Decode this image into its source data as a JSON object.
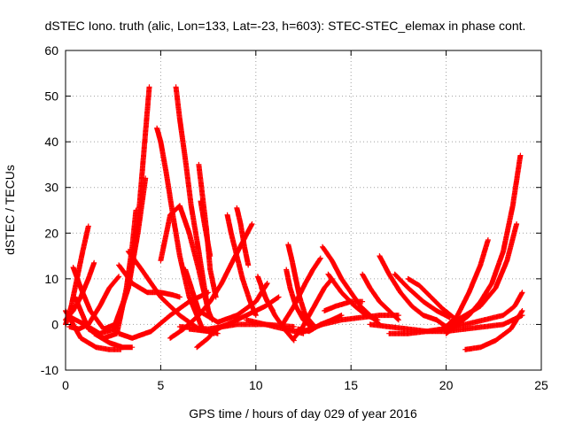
{
  "chart_data": {
    "type": "scatter",
    "title": "dSTEC Iono. truth (alic, Lon=133, Lat=-23, h=603): STEC-STEC_elemax in phase cont.",
    "xlabel": "GPS time / hours of day 029 of year 2016",
    "ylabel": "dSTEC  / TECUs",
    "xlim": [
      0,
      25
    ],
    "ylim": [
      -10,
      60
    ],
    "xticks": [
      0,
      5,
      10,
      15,
      20,
      25
    ],
    "yticks": [
      -10,
      0,
      10,
      20,
      30,
      40,
      50,
      60
    ],
    "grid": true,
    "marker": "plus",
    "color": "#ff0000",
    "series": [
      {
        "x": [
          0.0,
          0.3,
          0.6,
          0.9,
          1.2
        ],
        "y": [
          0.0,
          4,
          10,
          16,
          21.5
        ]
      },
      {
        "x": [
          0.0,
          0.4,
          0.8,
          1.2,
          1.5
        ],
        "y": [
          1.0,
          3,
          6,
          10,
          13.5
        ]
      },
      {
        "x": [
          0.3,
          1.0,
          1.8,
          2.6,
          3.3,
          3.8,
          4.1,
          4.4
        ],
        "y": [
          1.5,
          0,
          -2,
          -1,
          8,
          22,
          37,
          52
        ]
      },
      {
        "x": [
          0.4,
          0.8,
          1.3,
          2.0,
          2.6,
          3.3,
          3.8,
          4.2
        ],
        "y": [
          12.5,
          8,
          3,
          -1,
          0,
          8,
          20,
          32
        ]
      },
      {
        "x": [
          0.5,
          1.2,
          2.0,
          2.7,
          3.2,
          3.5,
          3.7
        ],
        "y": [
          6,
          -1,
          -3,
          -2,
          8,
          17,
          25
        ]
      },
      {
        "x": [
          0.0,
          0.8,
          1.6,
          2.3,
          2.9
        ],
        "y": [
          3,
          -3,
          -5,
          -5.5,
          -5.5
        ]
      },
      {
        "x": [
          0.2,
          0.7,
          1.2,
          1.8,
          2.3,
          2.8
        ],
        "y": [
          -0.5,
          -1,
          0,
          4,
          8,
          10.5
        ]
      },
      {
        "x": [
          1.5,
          2.3,
          3.0,
          3.5
        ],
        "y": [
          -2,
          -4,
          -5,
          -5
        ]
      },
      {
        "x": [
          2.8,
          3.5,
          4.3,
          5.0,
          5.6,
          6.0
        ],
        "y": [
          13,
          9,
          7,
          7,
          6.5,
          6
        ]
      },
      {
        "x": [
          2.8,
          3.5,
          4.5,
          5.5,
          6.5,
          7.5
        ],
        "y": [
          -2,
          -3,
          -1.5,
          2,
          5,
          7
        ]
      },
      {
        "x": [
          3.3,
          4.0,
          5.0,
          6.0,
          7.0,
          8.0
        ],
        "y": [
          16,
          12,
          6,
          2,
          -1,
          -2
        ]
      },
      {
        "x": [
          4.8,
          5.0,
          5.3,
          5.6,
          6.0,
          6.5,
          7.2,
          7.8
        ],
        "y": [
          43,
          40,
          33,
          25,
          15,
          6,
          -1,
          -2
        ]
      },
      {
        "x": [
          5.0,
          5.5,
          6.0,
          6.5,
          7.0,
          7.5
        ],
        "y": [
          14,
          24,
          26,
          20,
          12,
          3
        ]
      },
      {
        "x": [
          5.8,
          6.0,
          6.3,
          6.6,
          7.0,
          7.3,
          7.5,
          7.7
        ],
        "y": [
          52,
          45,
          36,
          26,
          16,
          8,
          3,
          1
        ]
      },
      {
        "x": [
          7.0,
          7.2,
          7.4,
          7.6,
          7.9
        ],
        "y": [
          35,
          28,
          21,
          12,
          6
        ]
      },
      {
        "x": [
          7.1,
          7.3,
          7.6
        ],
        "y": [
          27,
          22,
          15
        ]
      },
      {
        "x": [
          6.9,
          7.2,
          7.5,
          7.8,
          8.2,
          8.6
        ],
        "y": [
          -5,
          -4,
          -3,
          -1.5,
          -0.5,
          0
        ]
      },
      {
        "x": [
          5.5,
          6.2,
          7.0,
          7.6,
          8.2,
          8.8,
          9.3,
          9.8
        ],
        "y": [
          -3,
          -1,
          2,
          5,
          9,
          14,
          18,
          22
        ]
      },
      {
        "x": [
          6.5,
          7.5,
          8.5,
          9.5,
          10.5,
          11.2
        ],
        "y": [
          -1,
          -1.5,
          0,
          2,
          4,
          6
        ]
      },
      {
        "x": [
          6.3,
          7.0,
          8.0,
          9.0,
          10.0,
          10.6
        ],
        "y": [
          12,
          3,
          0.5,
          2,
          5,
          9
        ]
      },
      {
        "x": [
          8.5,
          8.7,
          9.0,
          9.3,
          9.7,
          10.0
        ],
        "y": [
          24,
          20,
          15,
          10,
          5,
          2
        ]
      },
      {
        "x": [
          9.0,
          9.2,
          9.4,
          9.6
        ],
        "y": [
          25.5,
          22,
          17,
          13
        ]
      },
      {
        "x": [
          6.0,
          7.5,
          9.0,
          10.5,
          12.0
        ],
        "y": [
          -0.5,
          -1,
          0,
          0,
          -0.5
        ]
      },
      {
        "x": [
          10.1,
          10.5,
          11.0,
          11.5,
          12.0
        ],
        "y": [
          10.5,
          6,
          2,
          -1,
          -3.5
        ]
      },
      {
        "x": [
          10.3,
          10.6,
          10.9
        ],
        "y": [
          8,
          5,
          3
        ]
      },
      {
        "x": [
          9.5,
          10.5,
          11.5,
          12.5
        ],
        "y": [
          1,
          0,
          -1,
          -2
        ]
      },
      {
        "x": [
          11.7,
          11.9,
          12.1,
          12.3,
          12.6,
          13.0
        ],
        "y": [
          17.5,
          14,
          10,
          6,
          2,
          0
        ]
      },
      {
        "x": [
          11.6,
          11.8,
          12.1,
          12.5,
          13.0
        ],
        "y": [
          12,
          8,
          4,
          1,
          -1
        ]
      },
      {
        "x": [
          12.0,
          12.4,
          12.8,
          13.2,
          13.6,
          14.0
        ],
        "y": [
          -3,
          -1,
          2,
          5,
          8,
          10
        ]
      },
      {
        "x": [
          12.2,
          12.8,
          13.4,
          14.0,
          14.5
        ],
        "y": [
          -1,
          -1.5,
          0,
          1,
          2
        ]
      },
      {
        "x": [
          11.4,
          12.0,
          12.6,
          13.0,
          13.4
        ],
        "y": [
          0,
          4,
          9,
          12,
          14.5
        ]
      },
      {
        "x": [
          13.5,
          14.0,
          14.5,
          15.0,
          15.5,
          16.0,
          16.5
        ],
        "y": [
          17,
          14,
          10,
          7,
          4,
          2,
          0
        ]
      },
      {
        "x": [
          13.8,
          14.5,
          15.2,
          15.8,
          16.4
        ],
        "y": [
          11,
          7,
          4,
          2,
          1
        ]
      },
      {
        "x": [
          13.6,
          14.2,
          15.0,
          15.6
        ],
        "y": [
          3,
          4,
          5,
          5
        ]
      },
      {
        "x": [
          12.5,
          13.5,
          14.5,
          15.5,
          16.5,
          17.5
        ],
        "y": [
          -1.5,
          0,
          1,
          1.5,
          2,
          2
        ]
      },
      {
        "x": [
          15.6,
          16.0,
          16.5,
          17.0,
          17.5
        ],
        "y": [
          11,
          8,
          5,
          3,
          1
        ]
      },
      {
        "x": [
          16.5,
          17.0,
          17.6,
          18.2,
          18.8,
          19.5
        ],
        "y": [
          15,
          11,
          7,
          4,
          2,
          1
        ]
      },
      {
        "x": [
          17.3,
          18.0,
          18.8,
          19.5,
          20.2
        ],
        "y": [
          11,
          8,
          5,
          3,
          1.5
        ]
      },
      {
        "x": [
          18.0,
          18.6,
          19.2,
          19.8,
          20.4
        ],
        "y": [
          10,
          8.5,
          6,
          3.5,
          1.5
        ]
      },
      {
        "x": [
          16.0,
          17.0,
          18.0,
          19.0,
          20.0,
          21.0
        ],
        "y": [
          0,
          -0.5,
          -1,
          -1.5,
          -1.5,
          -1
        ]
      },
      {
        "x": [
          17.0,
          18.0,
          19.0,
          19.8,
          20.5
        ],
        "y": [
          -2,
          -2,
          -1.5,
          -1,
          0
        ]
      },
      {
        "x": [
          19.5,
          20.0,
          20.6,
          21.2,
          21.8,
          22.2
        ],
        "y": [
          1,
          -0.5,
          2,
          7,
          13,
          18.5
        ]
      },
      {
        "x": [
          20.0,
          20.6,
          21.2,
          21.8,
          22.4,
          23.0,
          23.5,
          23.9
        ],
        "y": [
          -2,
          0,
          2,
          5,
          9,
          16,
          26,
          37
        ]
      },
      {
        "x": [
          20.2,
          21.0,
          21.8,
          22.6,
          23.2,
          23.7
        ],
        "y": [
          0,
          2,
          4,
          8,
          14,
          22
        ]
      },
      {
        "x": [
          20.0,
          21.0,
          22.0,
          23.0,
          23.6,
          24.0
        ],
        "y": [
          -1,
          0,
          1,
          2,
          4,
          7
        ]
      },
      {
        "x": [
          21.0,
          21.8,
          22.6,
          23.4,
          24.0
        ],
        "y": [
          -5.5,
          -5,
          -3.5,
          -1,
          3
        ]
      },
      {
        "x": [
          21.0,
          22.0,
          23.0,
          24.0
        ],
        "y": [
          -1,
          -0.5,
          0,
          2
        ]
      }
    ]
  }
}
